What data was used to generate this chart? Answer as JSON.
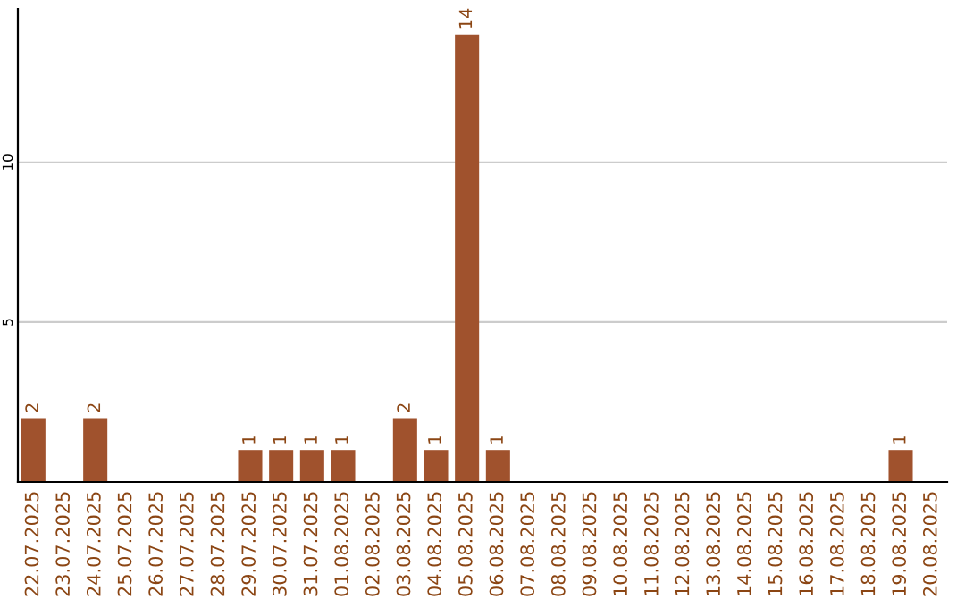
{
  "chart_data": {
    "type": "bar",
    "categories": [
      "22.07.2025",
      "23.07.2025",
      "24.07.2025",
      "25.07.2025",
      "26.07.2025",
      "27.07.2025",
      "28.07.2025",
      "29.07.2025",
      "30.07.2025",
      "31.07.2025",
      "01.08.2025",
      "02.08.2025",
      "03.08.2025",
      "04.08.2025",
      "05.08.2025",
      "06.08.2025",
      "07.08.2025",
      "08.08.2025",
      "09.08.2025",
      "10.08.2025",
      "11.08.2025",
      "12.08.2025",
      "13.08.2025",
      "14.08.2025",
      "15.08.2025",
      "16.08.2025",
      "17.08.2025",
      "18.08.2025",
      "19.08.2025",
      "20.08.2025"
    ],
    "values": [
      2,
      0,
      2,
      0,
      0,
      0,
      0,
      1,
      1,
      1,
      1,
      0,
      2,
      1,
      14,
      1,
      0,
      0,
      0,
      0,
      0,
      0,
      0,
      0,
      0,
      0,
      0,
      0,
      1,
      0
    ],
    "value_labels": [
      "2",
      null,
      "2",
      null,
      null,
      null,
      null,
      "1",
      "1",
      "1",
      "1",
      null,
      "2",
      "1",
      "14",
      "1",
      null,
      null,
      null,
      null,
      null,
      null,
      null,
      null,
      null,
      null,
      null,
      null,
      "1",
      null
    ],
    "color": "#a0522d",
    "ylim": [
      0,
      14.8
    ],
    "yticks": [
      5,
      10
    ],
    "grid": "y"
  }
}
